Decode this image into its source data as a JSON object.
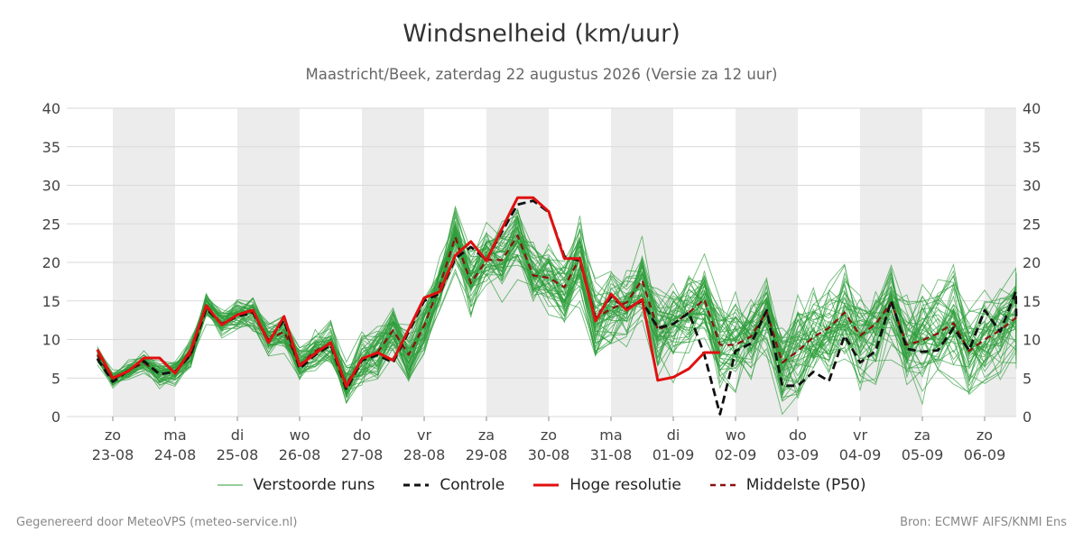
{
  "header": {
    "title": "Windsnelheid (km/uur)",
    "subtitle": "Maastricht/Beek, zaterdag 22 augustus 2026 (Versie za 12 uur)"
  },
  "footer": {
    "left": "Gegenereerd door MeteoVPS (meteo-service.nl)",
    "right": "Bron: ECMWF AIFS/KNMI Ens"
  },
  "legend": [
    {
      "key": "ensemble",
      "label": "Verstoorde runs"
    },
    {
      "key": "control",
      "label": "Controle"
    },
    {
      "key": "hires",
      "label": "Hoge resolutie"
    },
    {
      "key": "median",
      "label": "Middelste (P50)"
    }
  ],
  "colors": {
    "ensemble": "#2e9e3a",
    "control": "#111111",
    "hires": "#e01010",
    "median": "#8b1010",
    "band": "#ececec",
    "grid": "#d9d9d9"
  },
  "chart_data": {
    "type": "line",
    "title": "Windsnelheid (km/uur)",
    "ylim": [
      0,
      40
    ],
    "yticks": [
      0,
      5,
      10,
      15,
      20,
      25,
      30,
      35,
      40
    ],
    "xlim": [
      -0.25,
      14.8
    ],
    "x_unit": "days after 23-08 00:00",
    "days": [
      {
        "dow": "zo",
        "date": "23-08"
      },
      {
        "dow": "ma",
        "date": "24-08"
      },
      {
        "dow": "di",
        "date": "25-08"
      },
      {
        "dow": "wo",
        "date": "26-08"
      },
      {
        "dow": "do",
        "date": "27-08"
      },
      {
        "dow": "vr",
        "date": "28-08"
      },
      {
        "dow": "za",
        "date": "29-08"
      },
      {
        "dow": "zo",
        "date": "30-08"
      },
      {
        "dow": "ma",
        "date": "31-08"
      },
      {
        "dow": "di",
        "date": "01-09"
      },
      {
        "dow": "wo",
        "date": "02-09"
      },
      {
        "dow": "do",
        "date": "03-09"
      },
      {
        "dow": "vr",
        "date": "04-09"
      },
      {
        "dow": "za",
        "date": "05-09"
      },
      {
        "dow": "zo",
        "date": "06-09"
      }
    ],
    "bands": [
      [
        0,
        1
      ],
      [
        2,
        3
      ],
      [
        4,
        5
      ],
      [
        6,
        7
      ],
      [
        8,
        9
      ],
      [
        10,
        11
      ],
      [
        12,
        13
      ],
      [
        14,
        14.8
      ]
    ],
    "grid": true,
    "legend_position": "bottom",
    "series": [
      {
        "name": "Hoge resolutie",
        "style": "solid-thick",
        "x": [
          -0.25,
          0,
          0.25,
          0.5,
          0.75,
          1,
          1.25,
          1.5,
          1.75,
          2,
          2.25,
          2.5,
          2.75,
          3,
          3.25,
          3.5,
          3.75,
          4,
          4.25,
          4.5,
          4.75,
          5,
          5.25,
          5.5,
          5.75,
          6,
          6.25,
          6.5,
          6.75,
          7,
          7.25,
          7.5,
          7.75,
          8,
          8.25,
          8.5,
          8.75,
          9,
          9.25,
          9.5,
          9.75
        ],
        "values": [
          8.7,
          5.0,
          5.9,
          7.6,
          7.6,
          5.6,
          8.6,
          14.4,
          11.9,
          13.2,
          13.8,
          9.6,
          13.0,
          6.6,
          8.2,
          9.6,
          3.9,
          7.5,
          8.3,
          7.3,
          11.3,
          15.4,
          16.2,
          20.9,
          22.7,
          20.2,
          24.4,
          28.4,
          28.4,
          26.6,
          20.5,
          20.5,
          12.4,
          15.9,
          13.8,
          15.2,
          4.7,
          5.1,
          6.2,
          8.3,
          8.3
        ]
      },
      {
        "name": "Controle",
        "style": "dashed",
        "x": [
          -0.25,
          0,
          0.25,
          0.5,
          0.75,
          1,
          1.25,
          1.5,
          1.75,
          2,
          2.25,
          2.5,
          2.75,
          3,
          3.25,
          3.5,
          3.75,
          4,
          4.25,
          4.5,
          4.75,
          5,
          5.25,
          5.5,
          5.75,
          6,
          6.25,
          6.5,
          6.75,
          7,
          7.25,
          7.5,
          7.75,
          8,
          8.25,
          8.5,
          8.75,
          9,
          9.25,
          9.5,
          9.75,
          10,
          10.25,
          10.5,
          10.75,
          11,
          11.25,
          11.5,
          11.75,
          12,
          12.25,
          12.5,
          12.75,
          13,
          13.25,
          13.5,
          13.75,
          14,
          14.25,
          14.5,
          14.75
        ],
        "values": [
          7.5,
          4.5,
          6.0,
          7.2,
          5.5,
          5.8,
          8.0,
          14.0,
          12.0,
          13.0,
          13.5,
          9.8,
          12.5,
          6.2,
          8.0,
          9.3,
          3.5,
          7.3,
          8.0,
          7.0,
          11.0,
          15.0,
          16.0,
          20.5,
          22.0,
          20.3,
          24.0,
          27.5,
          28.0,
          26.5,
          20.8,
          20.2,
          12.8,
          15.5,
          14.0,
          15.0,
          11.5,
          12.0,
          13.5,
          8.0,
          0.3,
          8.5,
          9.5,
          13.8,
          4.0,
          4.0,
          5.8,
          4.6,
          10.5,
          7.0,
          8.5,
          15.0,
          8.8,
          8.4,
          8.6,
          11.5,
          8.6,
          13.8,
          11.0,
          16.2,
          13.0
        ]
      },
      {
        "name": "Middelste (P50)",
        "style": "dashed-dark",
        "x": [
          -0.25,
          0,
          0.25,
          0.5,
          0.75,
          1,
          1.25,
          1.5,
          1.75,
          2,
          2.25,
          2.5,
          2.75,
          3,
          3.25,
          3.5,
          3.75,
          4,
          4.25,
          4.5,
          4.75,
          5,
          5.25,
          5.5,
          5.75,
          6,
          6.25,
          6.5,
          6.75,
          7,
          7.25,
          7.5,
          7.75,
          8,
          8.25,
          8.5,
          8.75,
          9,
          9.25,
          9.5,
          9.75,
          10,
          10.25,
          10.5,
          10.75,
          11,
          11.25,
          11.5,
          11.75,
          12,
          12.25,
          12.5,
          12.75,
          13,
          13.25,
          13.5,
          13.75,
          14,
          14.25,
          14.5,
          14.75
        ],
        "values": [
          8.0,
          4.8,
          6.0,
          7.0,
          5.5,
          5.8,
          8.0,
          14.2,
          12.0,
          13.2,
          13.5,
          10.0,
          11.0,
          6.7,
          8.5,
          9.5,
          4.2,
          7.5,
          8.3,
          11.2,
          8.0,
          11.8,
          17.0,
          23.3,
          17.3,
          20.3,
          20.3,
          23.5,
          18.3,
          18.0,
          16.8,
          20.6,
          12.7,
          14.0,
          14.8,
          17.7,
          11.3,
          12.0,
          13.5,
          15.2,
          9.3,
          9.3,
          10.4,
          13.6,
          7.0,
          8.5,
          10.3,
          11.5,
          13.5,
          10.5,
          12.0,
          14.8,
          9.3,
          9.9,
          10.8,
          12.1,
          8.5,
          10.0,
          11.2,
          12.8,
          12.9
        ]
      }
    ],
    "ensemble": {
      "name": "Verstoorde runs",
      "members": 50,
      "x_step": 0.25,
      "x_start": -0.25,
      "x_end": 14.75
    }
  }
}
